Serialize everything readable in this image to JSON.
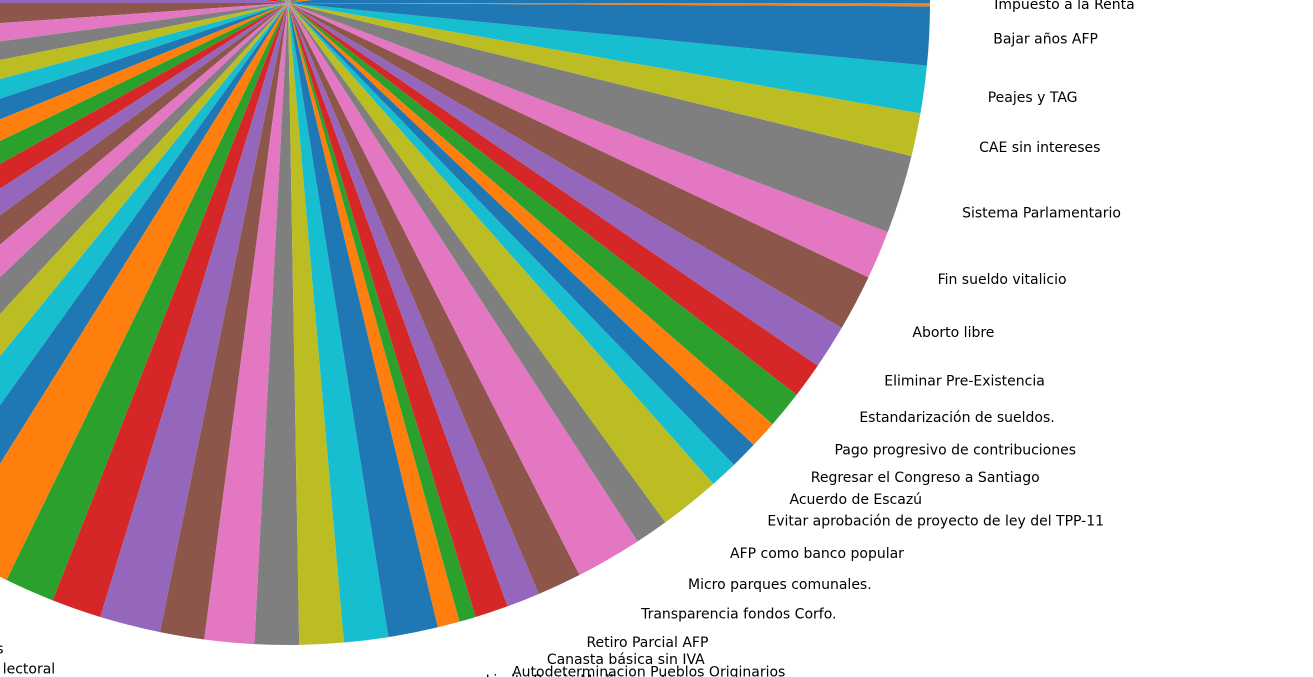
{
  "chart_data": {
    "type": "pie",
    "colors": [
      "#1f77b4",
      "#ff7f0e",
      "#2ca02c",
      "#d62728",
      "#9467bd",
      "#8c564b",
      "#e377c2",
      "#7f7f7f",
      "#bcbd22",
      "#17becf"
    ],
    "categories": [
      null,
      null,
      null,
      null,
      null,
      null,
      null,
      null,
      null,
      null,
      null,
      null,
      null,
      null,
      null,
      null,
      null,
      null,
      null,
      null,
      null,
      null,
      null,
      null,
      null,
      null,
      null,
      null,
      null,
      null,
      null,
      null,
      null,
      null,
      null,
      null,
      null,
      null,
      null,
      null,
      null,
      null,
      "s",
      "lectoral",
      null,
      null,
      null,
      null,
      null,
      null,
      null,
      null,
      "Limite Precio Medicamentos",
      "Autodeterminacion Pueblos Originarios",
      "Canasta básica sin IVA",
      "Retiro Parcial AFP",
      "Transparencia fondos Corfo.",
      "Micro parques comunales.",
      "AFP como banco popular",
      "Evitar aprobación de proyecto de ley del TPP-11",
      "Acuerdo de Escazú",
      "Regresar el Congreso a Santiago",
      "Pago progresivo de contribuciones",
      "Estandarización de sueldos.",
      "Eliminar Pre-Existencia",
      "Aborto libre",
      "Fin sueldo vitalicio",
      "Sistema Parlamentario",
      "CAE sin intereses",
      "Peajes y TAG",
      "Bajar años AFP",
      "Impuesto a la Renta"
    ],
    "values": [
      7.2,
      7.2,
      7.2,
      7.2,
      7.2,
      7.2,
      7.2,
      7.2,
      7.2,
      7.2,
      7.2,
      7.2,
      7.2,
      7.2,
      7.2,
      7.2,
      7.2,
      7.2,
      7.2,
      7.2,
      7.2,
      7.2,
      7.2,
      7.2,
      7.2,
      4.0,
      3.6,
      3.6,
      3.6,
      3.6,
      3.6,
      3.6,
      3.6,
      3.6,
      3.6,
      3.6,
      3.6,
      3.6,
      3.6,
      3.6,
      3.6,
      6,
      4.5,
      4.5,
      5.5,
      4,
      4.5,
      4,
      4,
      4,
      4.5,
      2,
      1.5,
      3.0,
      3.0,
      4.0,
      6.0,
      3.0,
      5.5,
      2.5,
      2.5,
      2.5,
      3.4,
      3.2,
      4.0,
      5.1,
      4.4,
      7.1,
      3.9,
      4.3,
      5.3,
      0.3
    ]
  }
}
